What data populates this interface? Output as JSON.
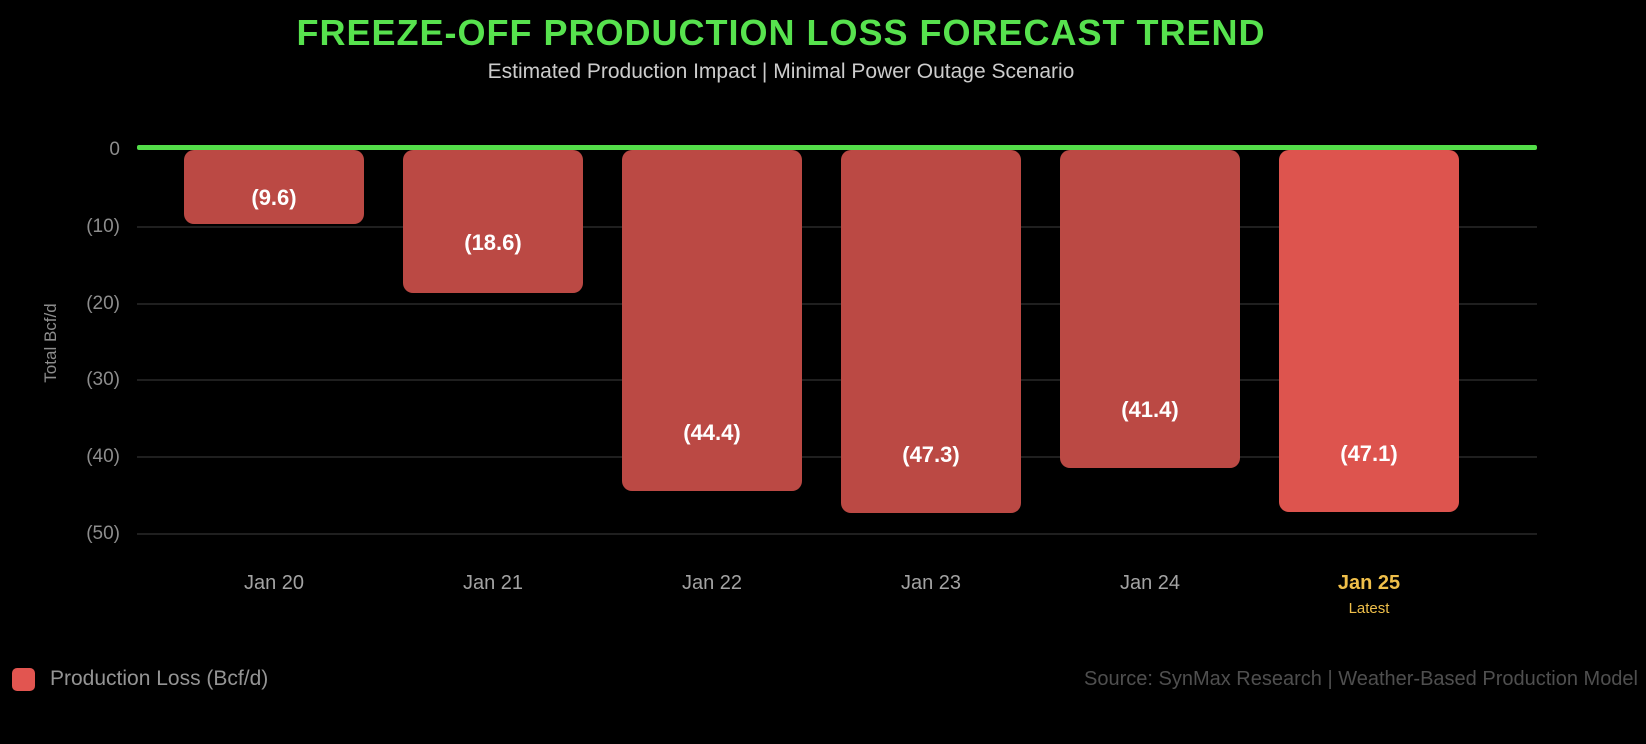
{
  "title": "FREEZE-OFF PRODUCTION LOSS FORECAST TREND",
  "subtitle": "Estimated Production Impact | Minimal Power Outage Scenario",
  "chart_data": {
    "type": "bar",
    "title": "FREEZE-OFF PRODUCTION LOSS FORECAST TREND",
    "subtitle": "Estimated Production Impact | Minimal Power Outage Scenario",
    "categories": [
      "Jan 20",
      "Jan 21",
      "Jan 22",
      "Jan 23",
      "Jan 24",
      "Jan 25"
    ],
    "series": [
      {
        "name": "Production Loss (Bcf/d)",
        "values": [
          -9.6,
          -18.6,
          -44.4,
          -47.3,
          -41.4,
          -47.1
        ],
        "bar_labels": [
          "(9.6)",
          "(18.6)",
          "(44.4)",
          "(47.3)",
          "(41.4)",
          "(47.1)"
        ]
      }
    ],
    "xlabel": "",
    "ylabel": "Total Bcf/d",
    "ylim": [
      -50,
      0
    ],
    "ytick_labels": [
      "0",
      "(10)",
      "(20)",
      "(30)",
      "(40)",
      "(50)"
    ],
    "grid": true,
    "zero_baseline": true,
    "legend_position": "bottom-left",
    "highlight": {
      "category": "Jan 25",
      "sublabel": "Latest"
    }
  },
  "legend": {
    "items": [
      {
        "label": "Production Loss (Bcf/d)",
        "color": "#e25550"
      }
    ]
  },
  "footer": {
    "source": "Source: SynMax Research | Weather-Based Production Model"
  },
  "colors": {
    "background": "#000000",
    "title_green": "#57e24e",
    "zero_line_green": "#53dd49",
    "bar_red": "#bb4944",
    "bar_latest_red": "#dd544e",
    "highlight_yellow": "#efbf4a",
    "grid_gray": "#1f1f1f",
    "axis_label_gray": "#8d8d8d",
    "x_label_gray": "#a3a3a3",
    "subtitle_gray": "#cccccc",
    "legend_text_gray": "#949494",
    "source_gray": "#4f4f4f"
  }
}
